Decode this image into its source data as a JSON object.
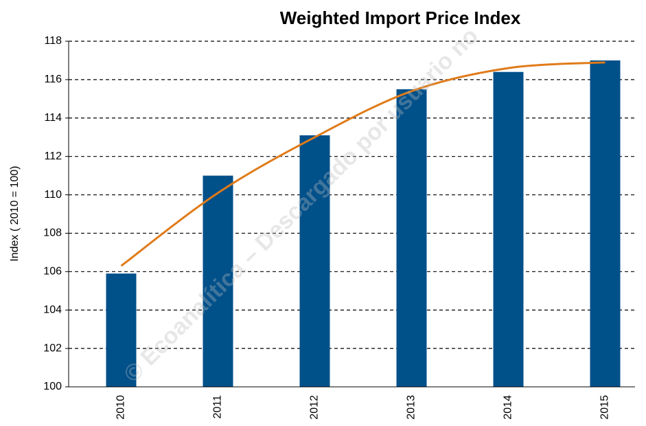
{
  "chart_data": {
    "type": "bar",
    "title": "Weighted Import Price Index",
    "y_label": "Index ( 2010 = 100)",
    "watermark": "© Ecoanalítica – Descargado por usuario no",
    "categories": [
      "2010",
      "2011",
      "2012",
      "2013",
      "2014",
      "2015"
    ],
    "series": [
      {
        "type": "bar",
        "color": "#00508a",
        "values": [
          105.9,
          111.0,
          113.1,
          115.5,
          116.4,
          117.0
        ]
      },
      {
        "type": "line",
        "color": "#e07b1a",
        "values": [
          106.3,
          110.1,
          113.0,
          115.4,
          116.6,
          116.9
        ]
      }
    ],
    "ylim": [
      100,
      118
    ],
    "yticks": [
      100,
      102,
      104,
      106,
      108,
      110,
      112,
      114,
      116,
      118
    ],
    "grid": true
  }
}
